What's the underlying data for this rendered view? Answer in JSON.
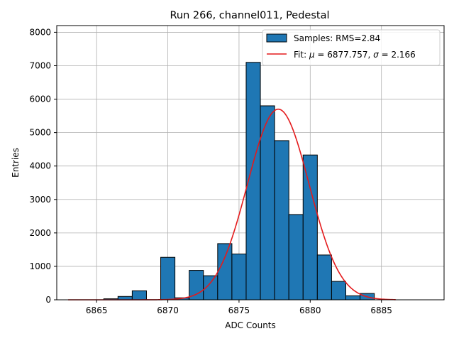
{
  "chart_data": {
    "type": "bar",
    "title": "Run 266, channel011, Pedestal",
    "xlabel": "ADC Counts",
    "ylabel": "Entries",
    "xlim": [
      6862.2,
      6889.4
    ],
    "ylim": [
      0,
      8200
    ],
    "xticks": [
      6865,
      6870,
      6875,
      6880,
      6885
    ],
    "yticks": [
      0,
      1000,
      2000,
      3000,
      4000,
      5000,
      6000,
      7000,
      8000
    ],
    "grid": true,
    "legend_position": "top-right",
    "bin_width": 1,
    "bins": [
      {
        "x": 6866.0,
        "count": 30
      },
      {
        "x": 6867.0,
        "count": 100
      },
      {
        "x": 6868.0,
        "count": 270
      },
      {
        "x": 6869.0,
        "count": 0
      },
      {
        "x": 6870.0,
        "count": 1270
      },
      {
        "x": 6871.0,
        "count": 60
      },
      {
        "x": 6872.0,
        "count": 880
      },
      {
        "x": 6873.0,
        "count": 720
      },
      {
        "x": 6874.0,
        "count": 1680
      },
      {
        "x": 6875.0,
        "count": 1370
      },
      {
        "x": 6876.0,
        "count": 7100
      },
      {
        "x": 6877.0,
        "count": 5800
      },
      {
        "x": 6878.0,
        "count": 4760
      },
      {
        "x": 6879.0,
        "count": 2550
      },
      {
        "x": 6880.0,
        "count": 4330
      },
      {
        "x": 6881.0,
        "count": 1340
      },
      {
        "x": 6882.0,
        "count": 550
      },
      {
        "x": 6883.0,
        "count": 120
      },
      {
        "x": 6884.0,
        "count": 190
      }
    ],
    "series": [
      {
        "name": "Samples: RMS=2.84",
        "kind": "histogram",
        "color": "#1f77b4"
      },
      {
        "name": "Fit: μ = 6877.757, σ = 2.166",
        "kind": "gaussian_fit",
        "color": "#e41a1c",
        "mu": 6877.757,
        "sigma": 2.166,
        "amplitude": 5700,
        "x_range": [
          6863,
          6886
        ]
      }
    ],
    "legend_labels": {
      "samples": "Samples: RMS=2.84",
      "fit_prefix": "Fit: ",
      "mu_sym": "μ",
      "mu_val": " = 6877.757, ",
      "sigma_sym": "σ",
      "sigma_val": " = 2.166"
    }
  }
}
